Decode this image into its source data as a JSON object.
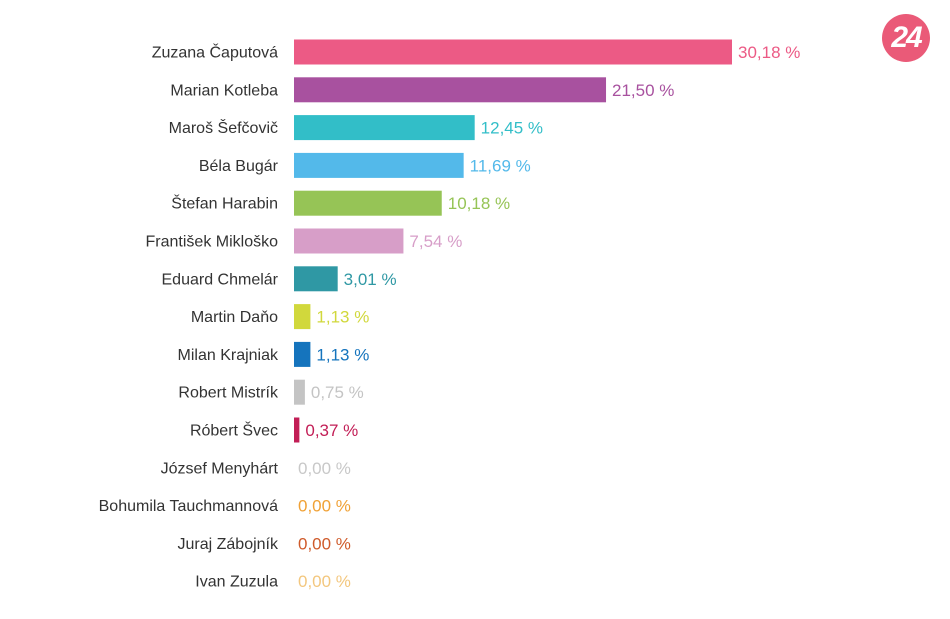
{
  "brand": {
    "logo_text": "24",
    "logo_color": "#ea5a78"
  },
  "chart_data": {
    "type": "bar",
    "orientation": "horizontal",
    "title": "",
    "xlabel": "",
    "ylabel": "",
    "xlim": [
      0,
      30.18
    ],
    "grid": false,
    "categories": [
      "Zuzana Čaputová",
      "Marian Kotleba",
      "Maroš Šefčovič",
      "Béla Bugár",
      "Štefan Harabin",
      "František Mikloško",
      "Eduard Chmelár",
      "Martin Daňo",
      "Milan Krajniak",
      "Robert Mistrík",
      "Róbert Švec",
      "József Menyhárt",
      "Bohumila Tauchmannová",
      "Juraj Zábojník",
      "Ivan Zuzula"
    ],
    "values": [
      30.18,
      21.5,
      12.45,
      11.69,
      10.18,
      7.54,
      3.01,
      1.13,
      1.13,
      0.75,
      0.37,
      0.0,
      0.0,
      0.0,
      0.0
    ],
    "value_labels": [
      "30,18 %",
      "21,50 %",
      "12,45 %",
      "11,69 %",
      "10,18 %",
      "7,54 %",
      "3,01 %",
      "1,13 %",
      "1,13 %",
      "0,75 %",
      "0,37 %",
      "0,00 %",
      "0,00 %",
      "0,00 %",
      "0,00 %"
    ],
    "colors": [
      "#ec5a85",
      "#a8519f",
      "#32bec8",
      "#53b9ea",
      "#96c456",
      "#d79ec8",
      "#2f98a4",
      "#d1d83c",
      "#1574bd",
      "#c4c4c4",
      "#c21e56",
      "#c8c8c8",
      "#f0a135",
      "#cf5a2a",
      "#f3c77e"
    ]
  }
}
